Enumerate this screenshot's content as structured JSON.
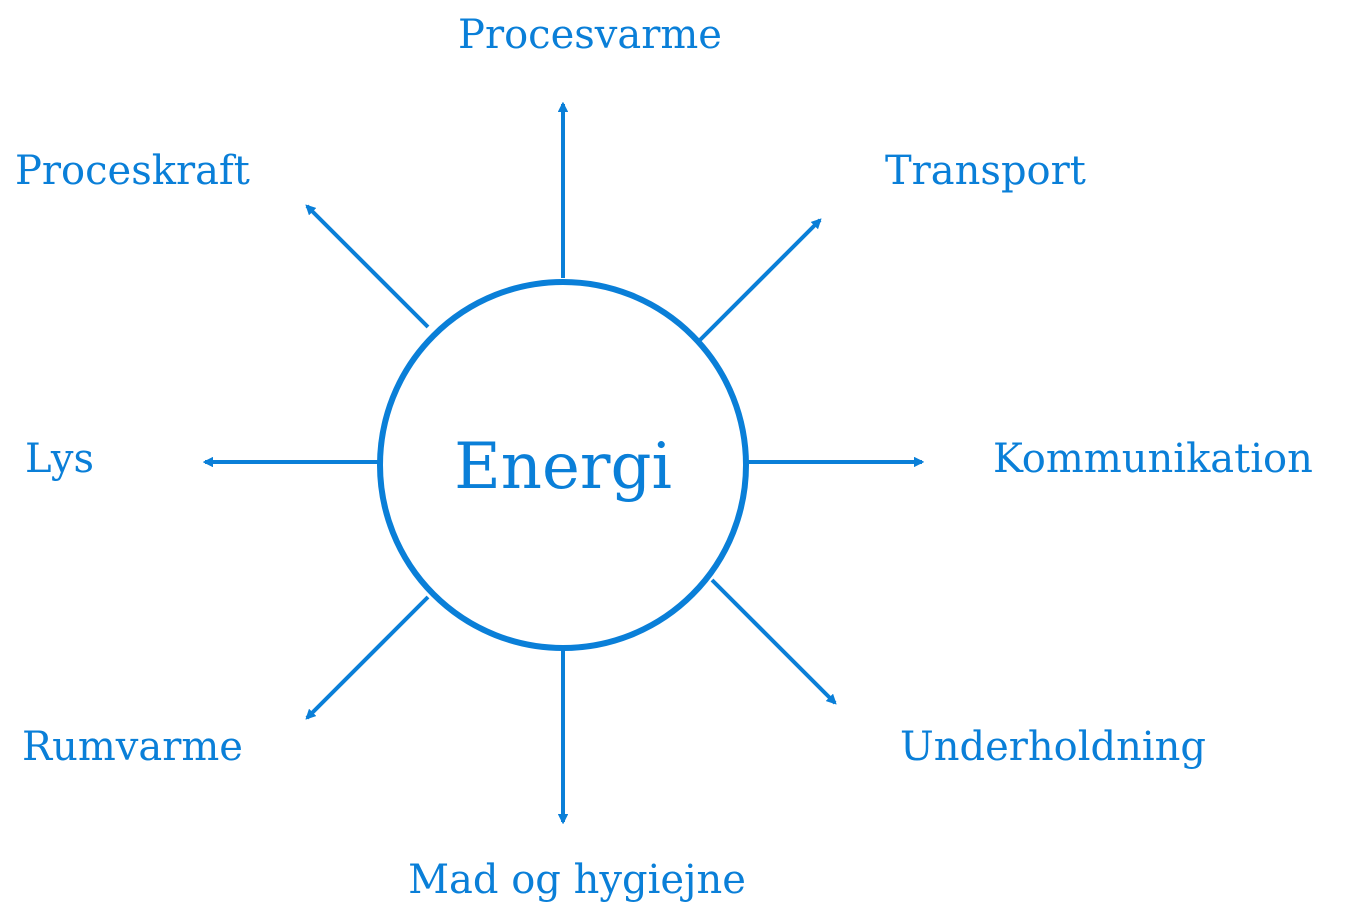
{
  "center": {
    "label": "Energi"
  },
  "nodes": [
    {
      "label": "Procesvarme"
    },
    {
      "label": "Transport"
    },
    {
      "label": "Kommunikation"
    },
    {
      "label": "Underholdning"
    },
    {
      "label": "Mad og hygiejne"
    },
    {
      "label": "Rumvarme"
    },
    {
      "label": "Lys"
    },
    {
      "label": "Proceskraft"
    }
  ]
}
